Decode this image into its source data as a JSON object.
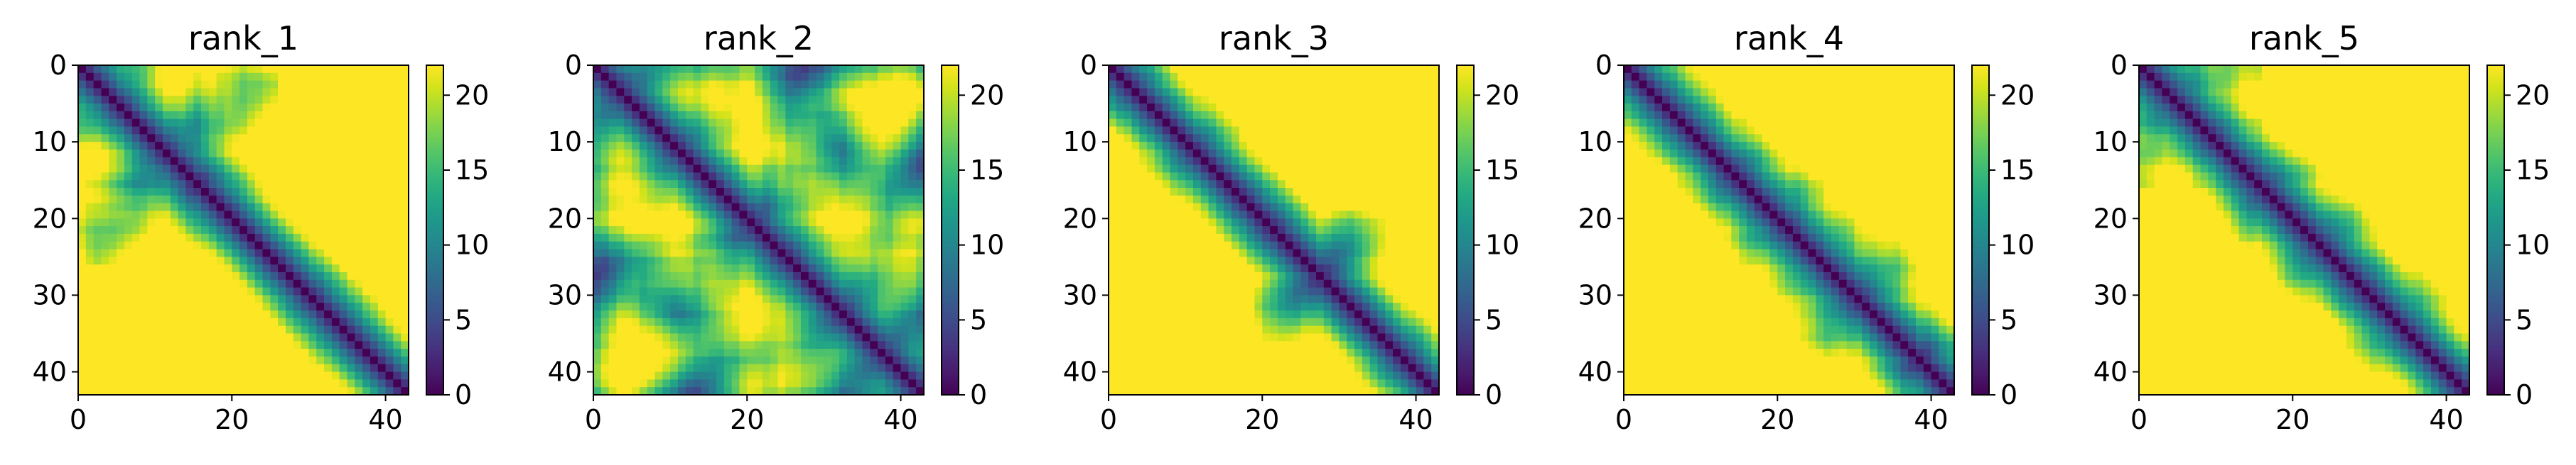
{
  "chart_data": [
    {
      "type": "heatmap",
      "title": "rank_1",
      "matrix_size": 43,
      "xlim": [
        0,
        43
      ],
      "ylim": [
        43,
        0
      ],
      "xticks": [
        0,
        20,
        40
      ],
      "yticks": [
        0,
        10,
        20,
        30,
        40
      ],
      "colorbar": {
        "vmin": 0,
        "vmax": 22,
        "ticks": [
          0,
          5,
          10,
          15,
          20
        ],
        "colormap": "viridis"
      },
      "seed": 11
    },
    {
      "type": "heatmap",
      "title": "rank_2",
      "matrix_size": 43,
      "xlim": [
        0,
        43
      ],
      "ylim": [
        43,
        0
      ],
      "xticks": [
        0,
        20,
        40
      ],
      "yticks": [
        0,
        10,
        20,
        30,
        40
      ],
      "colorbar": {
        "vmin": 0,
        "vmax": 22,
        "ticks": [
          0,
          5,
          10,
          15,
          20
        ],
        "colormap": "viridis"
      },
      "seed": 23
    },
    {
      "type": "heatmap",
      "title": "rank_3",
      "matrix_size": 43,
      "xlim": [
        0,
        43
      ],
      "ylim": [
        43,
        0
      ],
      "xticks": [
        0,
        20,
        40
      ],
      "yticks": [
        0,
        10,
        20,
        30,
        40
      ],
      "colorbar": {
        "vmin": 0,
        "vmax": 22,
        "ticks": [
          0,
          5,
          10,
          15,
          20
        ],
        "colormap": "viridis"
      },
      "seed": 37
    },
    {
      "type": "heatmap",
      "title": "rank_4",
      "matrix_size": 43,
      "xlim": [
        0,
        43
      ],
      "ylim": [
        43,
        0
      ],
      "xticks": [
        0,
        20,
        40
      ],
      "yticks": [
        0,
        10,
        20,
        30,
        40
      ],
      "colorbar": {
        "vmin": 0,
        "vmax": 22,
        "ticks": [
          0,
          5,
          10,
          15,
          20
        ],
        "colormap": "viridis"
      },
      "seed": 41
    },
    {
      "type": "heatmap",
      "title": "rank_5",
      "matrix_size": 43,
      "xlim": [
        0,
        43
      ],
      "ylim": [
        43,
        0
      ],
      "xticks": [
        0,
        20,
        40
      ],
      "yticks": [
        0,
        10,
        20,
        30,
        40
      ],
      "colorbar": {
        "vmin": 0,
        "vmax": 22,
        "ticks": [
          0,
          5,
          10,
          15,
          20
        ],
        "colormap": "viridis"
      },
      "seed": 53
    }
  ]
}
